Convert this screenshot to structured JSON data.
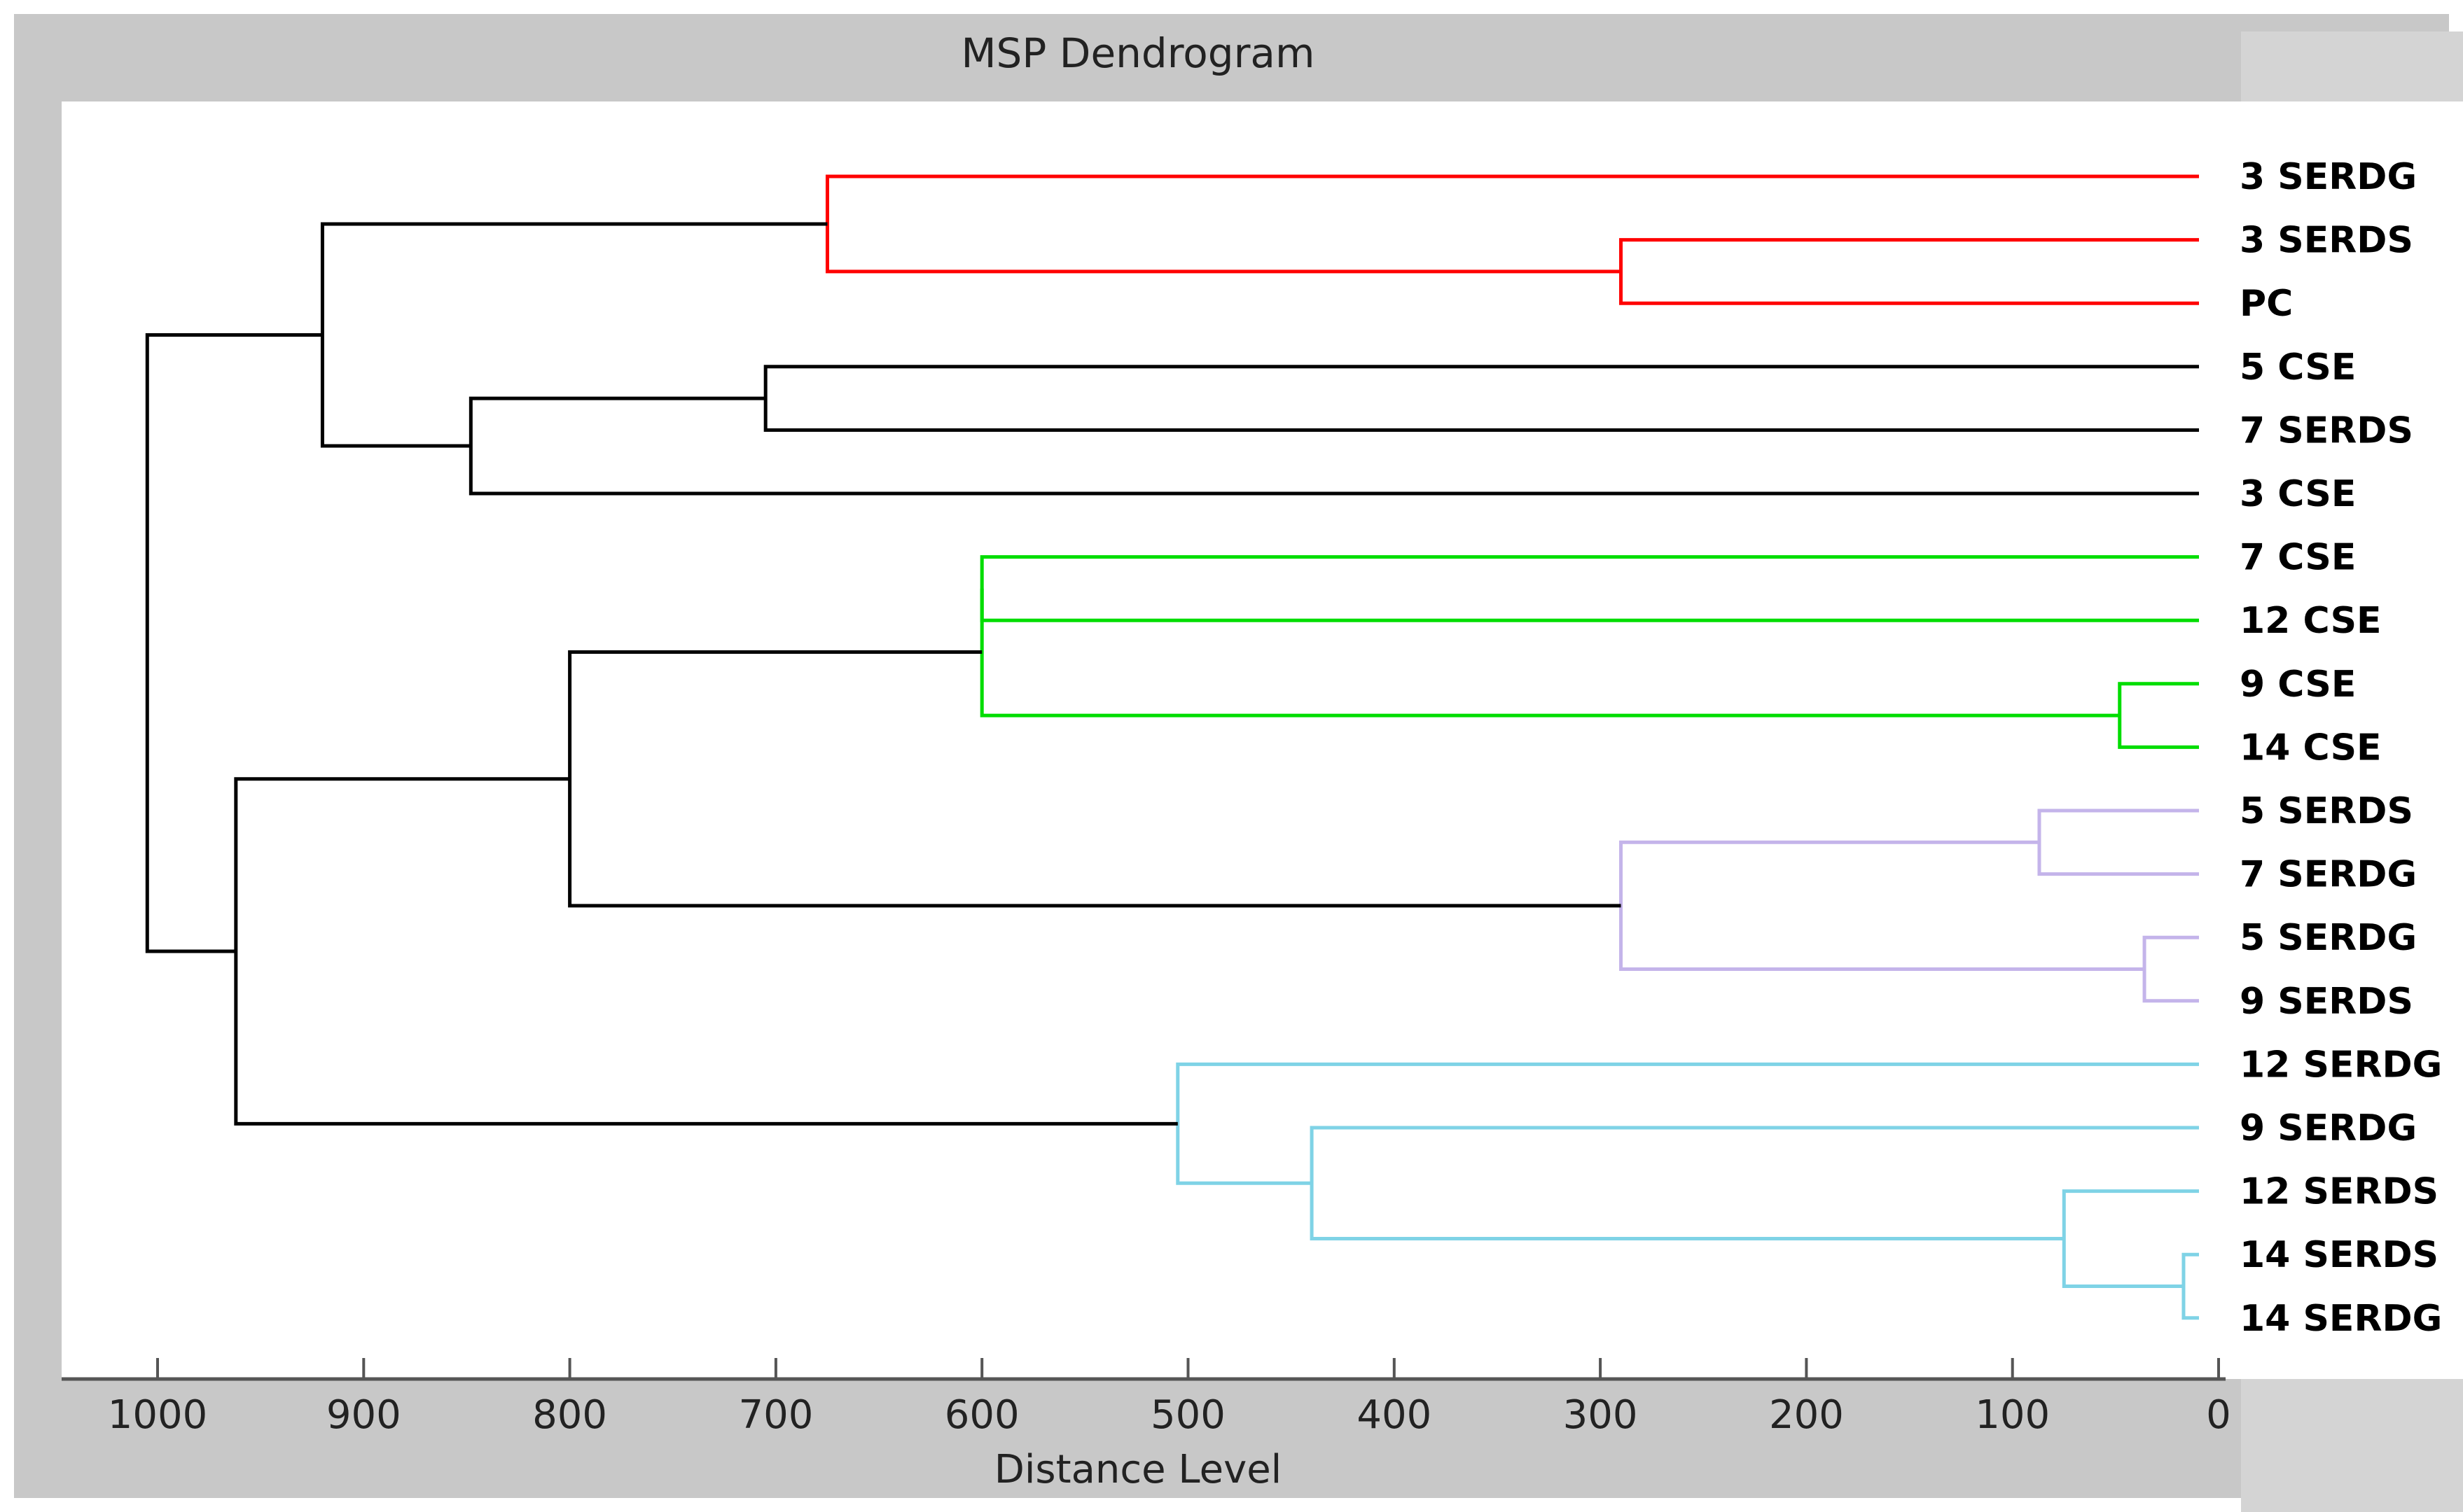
{
  "chart_data": {
    "type": "dendrogram",
    "title": "MSP Dendrogram",
    "xlabel": "Distance Level",
    "xlim": [
      1000,
      0
    ],
    "axis_min": -50,
    "xticks": [
      1000,
      900,
      800,
      700,
      600,
      500,
      400,
      300,
      200,
      100,
      0
    ],
    "orientation": "right",
    "leaves": [
      "3 SERDG",
      "3 SERDS",
      "PC",
      "5 CSE",
      "7 SERDS",
      "3 CSE",
      "7 CSE",
      "12 CSE",
      "9 CSE",
      "14 CSE",
      "5 SERDS",
      "7 SERDG",
      "5 SERDG",
      "9 SERDS",
      "12 SERDG",
      "9 SERDG",
      "12 SERDS",
      "14 SERDS",
      "14 SERDG"
    ],
    "colors": {
      "black": "#000000",
      "red": "#ff0000",
      "green": "#00dd00",
      "lavender": "#c4b4ea",
      "cyan": "#7fd3e6"
    },
    "merges": [
      {
        "id": "m1",
        "a": "14 SERDS",
        "b": "14 SERDG",
        "distance": 17,
        "color": "cyan"
      },
      {
        "id": "m2",
        "a": "9 CSE",
        "b": "14 CSE",
        "distance": 48,
        "color": "green"
      },
      {
        "id": "m3",
        "a": "5 SERDG",
        "b": "9 SERDS",
        "distance": 36,
        "color": "lavender"
      },
      {
        "id": "m4",
        "a": "12 SERDS",
        "b": "m1",
        "distance": 75,
        "color": "cyan"
      },
      {
        "id": "m5",
        "a": "5 SERDS",
        "b": "7 SERDG",
        "distance": 87,
        "color": "lavender"
      },
      {
        "id": "m6",
        "a": "3 SERDS",
        "b": "PC",
        "distance": 290,
        "color": "red"
      },
      {
        "id": "m7",
        "a": "m5",
        "b": "m3",
        "distance": 290,
        "color": "lavender"
      },
      {
        "id": "m8",
        "a": "9 SERDG",
        "b": "m4",
        "distance": 440,
        "color": "cyan"
      },
      {
        "id": "m9",
        "a": "12 SERDG",
        "b": "m8",
        "distance": 505,
        "color": "cyan"
      },
      {
        "id": "m10",
        "a": "7 CSE",
        "b": "12 CSE",
        "distance": 600,
        "color": "green"
      },
      {
        "id": "m11",
        "a": "m10",
        "b": "m2",
        "distance": 600,
        "color": "green"
      },
      {
        "id": "m12",
        "a": "3 SERDG",
        "b": "m6",
        "distance": 675,
        "color": "red"
      },
      {
        "id": "m13",
        "a": "5 CSE",
        "b": "7 SERDS",
        "distance": 705,
        "color": "black"
      },
      {
        "id": "m14",
        "a": "m11",
        "b": "m7",
        "distance": 800,
        "color": "black"
      },
      {
        "id": "m15",
        "a": "m13",
        "b": "3 CSE",
        "distance": 848,
        "color": "black"
      },
      {
        "id": "m16",
        "a": "m12",
        "b": "m15",
        "distance": 920,
        "color": "black"
      },
      {
        "id": "m17",
        "a": "m14",
        "b": "m9",
        "distance": 962,
        "color": "black"
      },
      {
        "id": "m18",
        "a": "m16",
        "b": "m17",
        "distance": 1005,
        "color": "black"
      }
    ]
  }
}
